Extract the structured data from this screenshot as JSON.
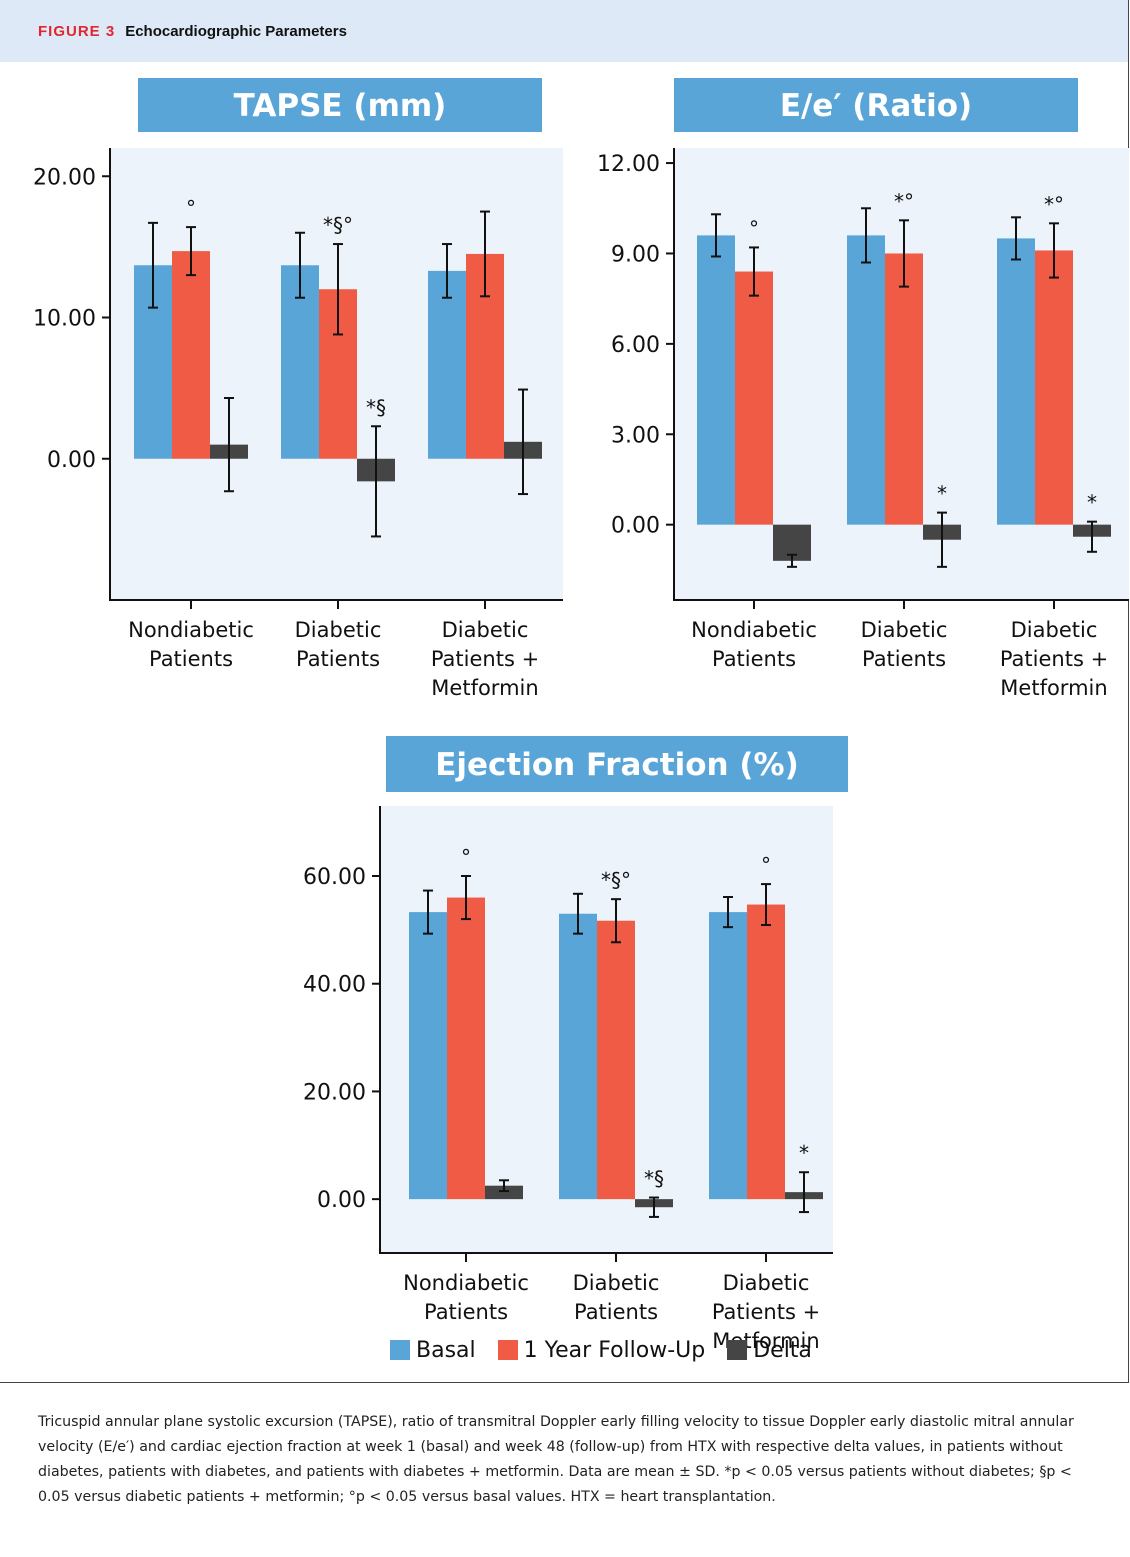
{
  "figure": {
    "label": "FIGURE 3",
    "title": "Echocardiographic Parameters",
    "caption": "Tricuspid annular plane systolic excursion (TAPSE), ratio of transmitral Doppler early filling velocity to tissue Doppler early diastolic mitral annular velocity (E/e′) and cardiac ejection fraction at week 1 (basal) and week 48 (follow-up) from HTX with respective delta values, in patients without diabetes, patients with diabetes, and patients with diabetes + metformin. Data are mean ± SD. *p < 0.05 versus patients without diabetes; §p < 0.05 versus diabetic patients + metformin; °p < 0.05 versus basal values. HTX = heart transplantation."
  },
  "legend": [
    {
      "name": "Basal",
      "color": "#5aa5d8"
    },
    {
      "name": "1 Year Follow-Up",
      "color": "#ef5b45"
    },
    {
      "name": "Delta",
      "color": "#454545"
    }
  ],
  "chart_data": [
    {
      "type": "bar",
      "title": "TAPSE (mm)",
      "categories": [
        [
          "Nondiabetic",
          "Patients"
        ],
        [
          "Diabetic",
          "Patients"
        ],
        [
          "Diabetic",
          "Patients +",
          "Metformin"
        ]
      ],
      "ylim": [
        -10,
        22
      ],
      "yticks": [
        0,
        10,
        20
      ],
      "ytick_labels": [
        "0.00",
        "10.00",
        "20.00"
      ],
      "series": [
        {
          "name": "Basal",
          "values": [
            13.7,
            13.7,
            13.3
          ],
          "err": [
            3.0,
            2.3,
            1.9
          ],
          "annotations": [
            "",
            "",
            ""
          ]
        },
        {
          "name": "1 Year Follow-Up",
          "values": [
            14.7,
            12.0,
            14.5
          ],
          "err": [
            1.7,
            3.2,
            3.0
          ],
          "annotations": [
            "°",
            "*§°",
            ""
          ]
        },
        {
          "name": "Delta",
          "values": [
            1.0,
            -1.6,
            1.2
          ],
          "err": [
            3.3,
            3.9,
            3.7
          ],
          "annotations": [
            "",
            "*§",
            ""
          ]
        }
      ]
    },
    {
      "type": "bar",
      "title": "E/e′ (Ratio)",
      "categories": [
        [
          "Nondiabetic",
          "Patients"
        ],
        [
          "Diabetic",
          "Patients"
        ],
        [
          "Diabetic",
          "Patients +",
          "Metformin"
        ]
      ],
      "ylim": [
        -2.5,
        12.5
      ],
      "yticks": [
        0,
        3,
        6,
        9,
        12
      ],
      "ytick_labels": [
        "0.00",
        "3.00",
        "6.00",
        "9.00",
        "12.00"
      ],
      "series": [
        {
          "name": "Basal",
          "values": [
            9.6,
            9.6,
            9.5
          ],
          "err": [
            0.7,
            0.9,
            0.7
          ],
          "annotations": [
            "",
            "",
            ""
          ]
        },
        {
          "name": "1 Year Follow-Up",
          "values": [
            8.4,
            9.0,
            9.1
          ],
          "err": [
            0.8,
            1.1,
            0.9
          ],
          "annotations": [
            "°",
            "*°",
            "*°"
          ]
        },
        {
          "name": "Delta",
          "values": [
            -1.2,
            -0.5,
            -0.4
          ],
          "err": [
            0.2,
            0.9,
            0.5
          ],
          "annotations": [
            "",
            "*",
            "*"
          ]
        }
      ]
    },
    {
      "type": "bar",
      "title": "Ejection Fraction (%)",
      "categories": [
        [
          "Nondiabetic",
          "Patients"
        ],
        [
          "Diabetic",
          "Patients"
        ],
        [
          "Diabetic",
          "Patients +",
          "Metformin"
        ]
      ],
      "ylim": [
        -10,
        73
      ],
      "yticks": [
        0,
        20,
        40,
        60
      ],
      "ytick_labels": [
        "0.00",
        "20.00",
        "40.00",
        "60.00"
      ],
      "series": [
        {
          "name": "Basal",
          "values": [
            53.3,
            53.0,
            53.3
          ],
          "err": [
            4.0,
            3.7,
            2.8
          ],
          "annotations": [
            "",
            "",
            ""
          ]
        },
        {
          "name": "1 Year Follow-Up",
          "values": [
            56.0,
            51.7,
            54.7
          ],
          "err": [
            4.0,
            4.0,
            3.8
          ],
          "annotations": [
            "°",
            "*§°",
            "°"
          ]
        },
        {
          "name": "Delta",
          "values": [
            2.5,
            -1.5,
            1.3
          ],
          "err": [
            1.0,
            1.8,
            3.7
          ],
          "annotations": [
            "",
            "*§",
            "*"
          ]
        }
      ]
    }
  ]
}
